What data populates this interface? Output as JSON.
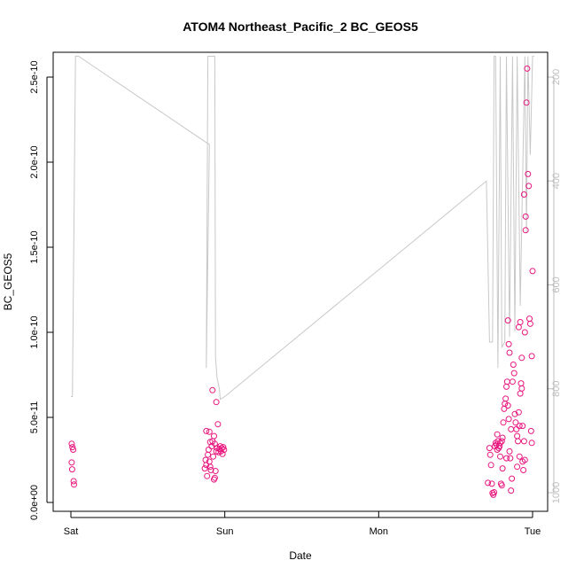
{
  "chart_data": {
    "type": "scatter",
    "title": "ATOM4 Northeast_Pacific_2 BC_GEOS5",
    "xlabel": "Date",
    "ylabel": "BC_GEOS5",
    "xlim": [
      0,
      3.1
    ],
    "ylim": [
      0,
      2.7e-10
    ],
    "x_ticks": [
      {
        "value": 0,
        "label": "Sat"
      },
      {
        "value": 1,
        "label": "Sun"
      },
      {
        "value": 2,
        "label": "Mon"
      },
      {
        "value": 3,
        "label": "Tue"
      }
    ],
    "y_ticks": [
      {
        "value": 0,
        "label": "0.0e+00"
      },
      {
        "value": 5e-11,
        "label": "5.0e-11"
      },
      {
        "value": 1e-10,
        "label": "1.0e-10"
      },
      {
        "value": 1.5e-10,
        "label": "1.5e-10"
      },
      {
        "value": 2e-10,
        "label": "2.0e-10"
      },
      {
        "value": 2.5e-10,
        "label": "2.5e-10"
      }
    ],
    "y2_ticks": [
      {
        "value": 200,
        "label": "200"
      },
      {
        "value": 400,
        "label": "400"
      },
      {
        "value": 600,
        "label": "600"
      },
      {
        "value": 800,
        "label": "800"
      },
      {
        "value": 1000,
        "label": "1000"
      }
    ],
    "y2lim": [
      1020,
      150
    ],
    "colors": {
      "points": "#e8177f",
      "pressure": "#c8c8c8",
      "axis": "#000000",
      "right_axis": "#bdbdbd"
    },
    "grid": false,
    "series": [
      {
        "values": [
          [
            0.005,
            3.45e-11
          ],
          [
            0.01,
            3.25e-11
          ],
          [
            0.015,
            3.1e-11
          ],
          [
            0.005,
            2.35e-11
          ],
          [
            0.008,
            1.95e-11
          ],
          [
            0.018,
            1.25e-11
          ],
          [
            0.02,
            1.05e-11
          ],
          [
            0.87,
            2e-11
          ],
          [
            0.88,
            2.2e-11
          ],
          [
            0.875,
            2.5e-11
          ],
          [
            0.885,
            1.55e-11
          ],
          [
            0.89,
            2.8e-11
          ],
          [
            0.895,
            3.1e-11
          ],
          [
            0.9,
            2.4e-11
          ],
          [
            0.905,
            2.1e-11
          ],
          [
            0.91,
            1.9e-11
          ],
          [
            0.915,
            3.3e-11
          ],
          [
            0.92,
            3.6e-11
          ],
          [
            0.925,
            2.7e-11
          ],
          [
            0.93,
            3.9e-11
          ],
          [
            0.93,
            1.35e-11
          ],
          [
            0.935,
            1.45e-11
          ],
          [
            0.94,
            1.85e-11
          ],
          [
            0.945,
            3e-11
          ],
          [
            0.95,
            3.2e-11
          ],
          [
            0.955,
            4.6e-11
          ],
          [
            0.96,
            2.95e-11
          ],
          [
            0.965,
            3.15e-11
          ],
          [
            0.97,
            3.3e-11
          ],
          [
            0.975,
            3e-11
          ],
          [
            0.98,
            3.2e-11
          ],
          [
            0.985,
            2.85e-11
          ],
          [
            0.99,
            3.25e-11
          ],
          [
            0.995,
            3.1e-11
          ],
          [
            0.88,
            4.2e-11
          ],
          [
            0.9,
            4.15e-11
          ],
          [
            0.92,
            6.6e-11
          ],
          [
            0.945,
            5.9e-11
          ],
          [
            0.905,
            3.55e-11
          ],
          [
            0.935,
            3.45e-11
          ],
          [
            2.71,
            1.15e-11
          ],
          [
            2.72,
            3.2e-11
          ],
          [
            2.725,
            2.8e-11
          ],
          [
            2.73,
            2.2e-11
          ],
          [
            2.735,
            1.1e-11
          ],
          [
            2.74,
            5.5e-12
          ],
          [
            2.745,
            4.5e-12
          ],
          [
            2.75,
            6e-12
          ],
          [
            2.755,
            3.3e-11
          ],
          [
            2.76,
            3.5e-11
          ],
          [
            2.765,
            3.4e-11
          ],
          [
            2.77,
            4e-11
          ],
          [
            2.775,
            3.6e-11
          ],
          [
            2.78,
            3.2e-11
          ],
          [
            2.785,
            3.3e-11
          ],
          [
            2.79,
            3.5e-11
          ],
          [
            2.795,
            1.1e-11
          ],
          [
            2.8,
            1e-11
          ],
          [
            2.805,
            2e-11
          ],
          [
            2.81,
            4.7e-11
          ],
          [
            2.815,
            5.5e-11
          ],
          [
            2.82,
            5.8e-11
          ],
          [
            2.825,
            6.1e-11
          ],
          [
            2.83,
            6.8e-11
          ],
          [
            2.835,
            7.1e-11
          ],
          [
            2.84,
            5.7e-11
          ],
          [
            2.845,
            4.9e-11
          ],
          [
            2.85,
            3e-11
          ],
          [
            2.855,
            2.6e-11
          ],
          [
            2.86,
            7e-12
          ],
          [
            2.865,
            1.4e-11
          ],
          [
            2.87,
            7.1e-11
          ],
          [
            2.875,
            8.1e-11
          ],
          [
            2.88,
            7.6e-11
          ],
          [
            2.885,
            5.2e-11
          ],
          [
            2.89,
            4.7e-11
          ],
          [
            2.895,
            4.3e-11
          ],
          [
            2.9,
            3.9e-11
          ],
          [
            2.905,
            3.6e-11
          ],
          [
            2.91,
            5.3e-11
          ],
          [
            2.915,
            4.5e-11
          ],
          [
            2.92,
            6.4e-11
          ],
          [
            2.925,
            7e-11
          ],
          [
            2.93,
            6.7e-11
          ],
          [
            2.935,
            2.4e-11
          ],
          [
            2.94,
            1.9e-11
          ],
          [
            2.945,
            3.6e-11
          ],
          [
            2.95,
            1e-10
          ],
          [
            2.955,
            1.6e-10
          ],
          [
            2.96,
            2.35e-10
          ],
          [
            2.965,
            2.55e-10
          ],
          [
            2.97,
            1.93e-10
          ],
          [
            2.975,
            1.86e-10
          ],
          [
            2.98,
            1.08e-10
          ],
          [
            2.985,
            1.05e-10
          ],
          [
            2.99,
            4.2e-11
          ],
          [
            2.995,
            8.6e-11
          ],
          [
            2.91,
            1.03e-10
          ],
          [
            2.92,
            1.06e-10
          ],
          [
            2.93,
            8.5e-11
          ],
          [
            2.945,
            1.81e-10
          ],
          [
            2.955,
            1.68e-10
          ],
          [
            3.0,
            1.36e-10
          ],
          [
            2.995,
            3.5e-11
          ],
          [
            2.85,
            8.8e-11
          ],
          [
            2.845,
            9.3e-11
          ],
          [
            2.84,
            1.07e-10
          ],
          [
            2.8,
            3.6e-11
          ],
          [
            2.805,
            3.8e-11
          ],
          [
            2.83,
            2.6e-11
          ],
          [
            2.86,
            4.3e-11
          ],
          [
            2.9,
            2.1e-11
          ],
          [
            2.935,
            4.5e-11
          ],
          [
            2.915,
            2.7e-11
          ],
          [
            2.95,
            2.5e-11
          ],
          [
            2.79,
            2.7e-11
          ],
          [
            2.77,
            3.1e-11
          ]
        ]
      },
      {
        "axis": "right",
        "values": [
          [
            0.0,
            815
          ],
          [
            0.01,
            815
          ],
          [
            0.03,
            160
          ],
          [
            0.05,
            160
          ],
          [
            0.9,
            330
          ],
          [
            0.88,
            760
          ],
          [
            0.89,
            160
          ],
          [
            0.91,
            160
          ],
          [
            0.92,
            160
          ],
          [
            0.935,
            160
          ],
          [
            0.94,
            740
          ],
          [
            0.95,
            780
          ],
          [
            0.965,
            800
          ],
          [
            0.97,
            820
          ],
          [
            1.0,
            815
          ],
          [
            2.7,
            400
          ],
          [
            2.72,
            710
          ],
          [
            2.74,
            710
          ],
          [
            2.75,
            160
          ],
          [
            2.76,
            160
          ],
          [
            2.775,
            760
          ],
          [
            2.79,
            160
          ],
          [
            2.8,
            720
          ],
          [
            2.82,
            710
          ],
          [
            2.83,
            160
          ],
          [
            2.85,
            700
          ],
          [
            2.87,
            160
          ],
          [
            2.885,
            690
          ],
          [
            2.9,
            160
          ],
          [
            2.92,
            640
          ],
          [
            2.95,
            160
          ],
          [
            2.96,
            500
          ],
          [
            2.97,
            160
          ],
          [
            2.985,
            350
          ],
          [
            3.0,
            160
          ],
          [
            3.01,
            160
          ]
        ]
      }
    ]
  }
}
